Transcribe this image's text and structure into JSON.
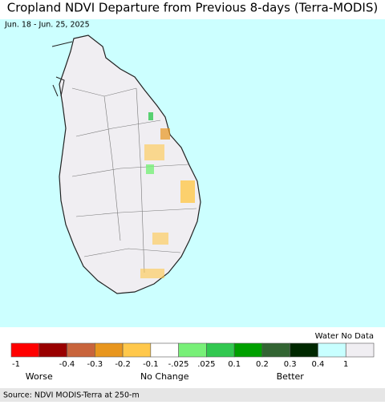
{
  "title": "Cropland NDVI Departure from Previous 8-days (Terra-MODIS)",
  "subtitle": "Jun. 18 - Jun. 25, 2025",
  "legend": {
    "heading": "Water No Data",
    "colors": [
      "#ff0000",
      "#990000",
      "#c8643c",
      "#e8961e",
      "#ffc84b",
      "#ffffff",
      "#78f078",
      "#32c850",
      "#00a000",
      "#326432",
      "#002800",
      "#c8ffff",
      "#f0eef2"
    ],
    "ticks": [
      "-1",
      "-0.4",
      "-0.3",
      "-0.2",
      "-0.1",
      "-.025",
      ".025",
      "0.1",
      "0.2",
      "0.3",
      "0.4",
      "1"
    ],
    "groups": [
      "Worse",
      "No Change",
      "Better"
    ]
  },
  "source": "Source: NDVI MODIS-Terra at 250-m"
}
